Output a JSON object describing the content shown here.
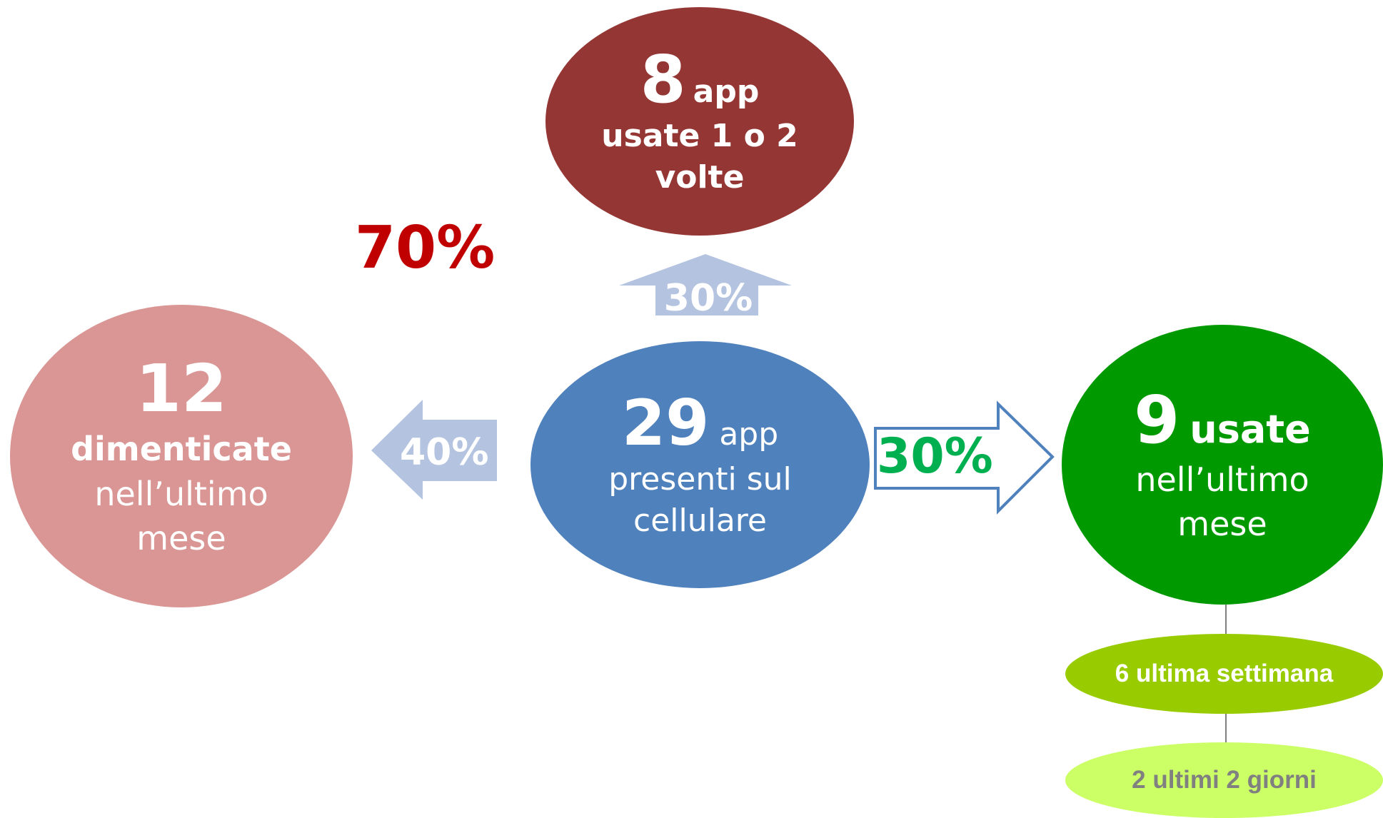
{
  "diagram": {
    "center_node": {
      "number": "29",
      "unit": "app",
      "line1": "presenti sul",
      "line2": "cellulare"
    },
    "top_node": {
      "number": "8",
      "unit": "app",
      "line1": "usate 1 o 2",
      "line2": "volte"
    },
    "left_node": {
      "number": "12",
      "line1": "dimenticate",
      "line2": "nell’ultimo",
      "line3": "mese"
    },
    "right_node": {
      "number": "9",
      "unit": "usate",
      "line1": "nell’ultimo",
      "line2": "mese"
    },
    "sub_nodes": {
      "week": "6 ultima settimana",
      "days": "2 ultimi 2 giorni"
    },
    "percentages": {
      "combined": "70%",
      "up": "30%",
      "left": "40%",
      "right": "30%"
    }
  },
  "colors": {
    "center": "#4f81bd",
    "top": "#943634",
    "left": "#d99694",
    "right": "#009900",
    "sub_week": "#99cc00",
    "sub_days": "#ccff66",
    "combined_pct": "#c00000",
    "right_pct": "#00b050",
    "arrow_fill": "#b3c3e0",
    "arrow_outline": "#4f81bd"
  }
}
